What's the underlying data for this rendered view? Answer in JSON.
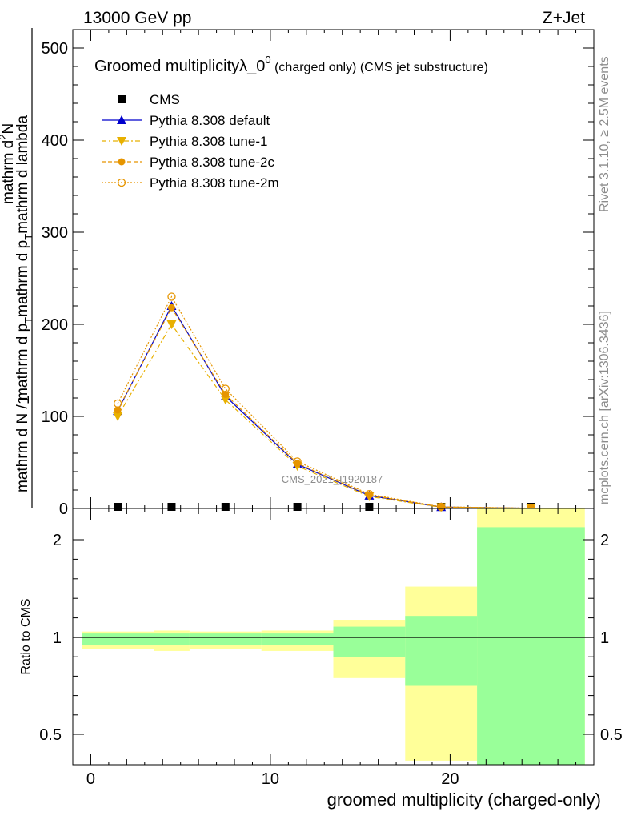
{
  "header": {
    "left": "13000 GeV pp",
    "right": "Z+Jet"
  },
  "side_labels": {
    "rivet": "Rivet 3.1.10, ≥ 2.5M events",
    "mcplots": "mcplots.cern.ch [arXiv:1306.3436]"
  },
  "chart_data": [
    {
      "type": "line",
      "title_main": "Groomed multiplicityλ_0",
      "title_sup": "0",
      "title_tail": " (charged only) (CMS jet substructure)",
      "watermark": "CMS_2021_I1920187",
      "ylabel": {
        "numerator": "1",
        "denominator": "mathrm d N / mathrm d p",
        "denominator_sub": "T",
        "denominator_tail": "mathrm d p",
        "denominator_tail_sub": "T",
        "denominator_end": "mathrm d lambda",
        "frac_numerator": "mathrm d",
        "frac_numerator_sup": "2",
        "frac_numerator_end": "N"
      },
      "xlim": [
        -1,
        28
      ],
      "ylim": [
        0,
        520
      ],
      "y_ticks": [
        0,
        100,
        200,
        300,
        400,
        500
      ],
      "y_tick_labels": [
        "0",
        "100",
        "200",
        "300",
        "400",
        "500"
      ],
      "x": [
        1.5,
        4.5,
        7.5,
        11.5,
        15.5,
        19.5,
        24.5
      ],
      "legend_position": "top-left",
      "series": [
        {
          "name": "CMS",
          "color": "#000000",
          "marker": "square",
          "values": [
            0,
            0,
            0,
            0,
            0,
            0,
            0
          ]
        },
        {
          "name": "Pythia 8.308 default",
          "color": "#0000cc",
          "marker": "triangle-up",
          "dash": "",
          "values": [
            106,
            220,
            122,
            48,
            14,
            1.5,
            0.2
          ]
        },
        {
          "name": "Pythia 8.308 tune-1",
          "color": "#e8b000",
          "marker": "triangle-down",
          "dash": "6 3 2 3",
          "values": [
            100,
            200,
            118,
            46,
            13,
            1.3,
            0.2
          ]
        },
        {
          "name": "Pythia 8.308 tune-2c",
          "color": "#e69500",
          "marker": "circle-filled",
          "dash": "5 3",
          "values": [
            107,
            218,
            124,
            49,
            14.5,
            1.6,
            0.2
          ]
        },
        {
          "name": "Pythia 8.308 tune-2m",
          "color": "#e69500",
          "marker": "circle-open",
          "dash": "2 2",
          "values": [
            114,
            230,
            130,
            51,
            15.5,
            1.8,
            0.3
          ]
        }
      ]
    },
    {
      "type": "area",
      "ylabel": "Ratio to CMS",
      "xlabel": "groomed multiplicity (charged-only)",
      "xlim": [
        -1,
        28
      ],
      "ylim": [
        0.35,
        2.25
      ],
      "y_ticks": [
        0.5,
        1,
        2
      ],
      "y_tick_labels": [
        "0.5",
        "1",
        "2"
      ],
      "x_ticks": [
        0,
        10,
        20
      ],
      "x_tick_labels": [
        "0",
        "10",
        "20"
      ],
      "bin_edges": [
        -0.5,
        3.5,
        5.5,
        9.5,
        13.5,
        17.5,
        21.5,
        27.5
      ],
      "band_outer_yellow": {
        "color": "#ffff99",
        "low": [
          0.94,
          0.93,
          0.94,
          0.93,
          0.79,
          0.37,
          0.35
        ],
        "high": [
          1.06,
          1.07,
          1.06,
          1.07,
          1.18,
          1.52,
          2.25
        ]
      },
      "band_inner_green": {
        "color": "#99ff99",
        "low": [
          0.96,
          0.96,
          0.96,
          0.96,
          0.9,
          0.75,
          0.35
        ],
        "high": [
          1.04,
          1.04,
          1.04,
          1.04,
          1.11,
          1.22,
          2.1
        ]
      },
      "reference_line": 1
    }
  ]
}
